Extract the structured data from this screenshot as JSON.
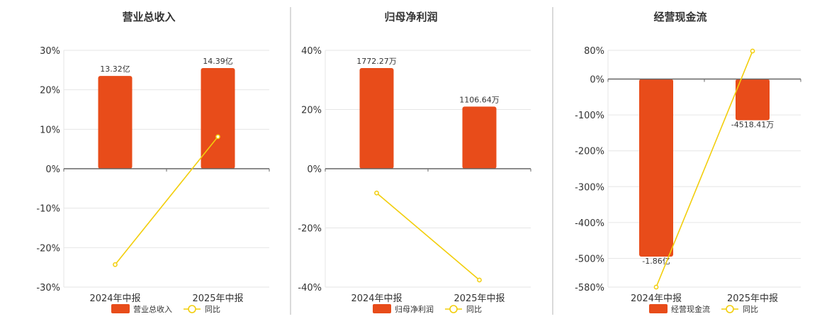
{
  "colors": {
    "bar": "#E84C1A",
    "line": "#F2CE0C",
    "grid": "#E6E6E6",
    "axis": "#666666",
    "divider": "#B5B5B5",
    "text": "#333333"
  },
  "chart_data": [
    {
      "type": "bar",
      "title": "营业总收入",
      "categories": [
        "2024年中报",
        "2025年中报"
      ],
      "series": [
        {
          "name": "营业总收入",
          "kind": "bar",
          "axis": "left",
          "values": [
            23.5,
            25.5
          ],
          "labels": [
            "13.32亿",
            "14.39亿"
          ]
        },
        {
          "name": "同比",
          "kind": "line",
          "axis": "left",
          "values": [
            -24.3,
            8.1
          ]
        }
      ],
      "ylim": [
        -30,
        30
      ],
      "yticks": [
        30,
        20,
        10,
        0,
        -10,
        -20,
        -30
      ],
      "ytick_labels": [
        "30%",
        "20%",
        "10%",
        "0%",
        "-10%",
        "-20%",
        "-30%"
      ],
      "grid": true,
      "legend": "bottom"
    },
    {
      "type": "bar",
      "title": "归母净利润",
      "categories": [
        "2024年中报",
        "2025年中报"
      ],
      "series": [
        {
          "name": "归母净利润",
          "kind": "bar",
          "axis": "left",
          "values": [
            34,
            21
          ],
          "labels": [
            "1772.27万",
            "1106.64万"
          ]
        },
        {
          "name": "同比",
          "kind": "line",
          "axis": "left",
          "values": [
            -8.2,
            -37.6
          ]
        }
      ],
      "ylim": [
        -40,
        40
      ],
      "yticks": [
        40,
        20,
        0,
        -20,
        -40
      ],
      "ytick_labels": [
        "40%",
        "20%",
        "0%",
        "-20%",
        "-40%"
      ],
      "grid": true,
      "legend": "bottom"
    },
    {
      "type": "bar",
      "title": "经营现金流",
      "categories": [
        "2024年中报",
        "2025年中报"
      ],
      "series": [
        {
          "name": "经营现金流",
          "kind": "bar",
          "axis": "left",
          "values": [
            -495,
            -115
          ],
          "labels": [
            "-1.86亿",
            "-4518.41万"
          ]
        },
        {
          "name": "同比",
          "kind": "line",
          "axis": "left",
          "values": [
            -580,
            78
          ]
        }
      ],
      "ylim": [
        -580,
        80
      ],
      "yticks": [
        80,
        0,
        -100,
        -200,
        -300,
        -400,
        -500,
        -580
      ],
      "ytick_labels": [
        "80%",
        "0%",
        "-100%",
        "-200%",
        "-300%",
        "-400%",
        "-500%",
        "-580%"
      ],
      "grid": true,
      "legend": "bottom"
    }
  ]
}
